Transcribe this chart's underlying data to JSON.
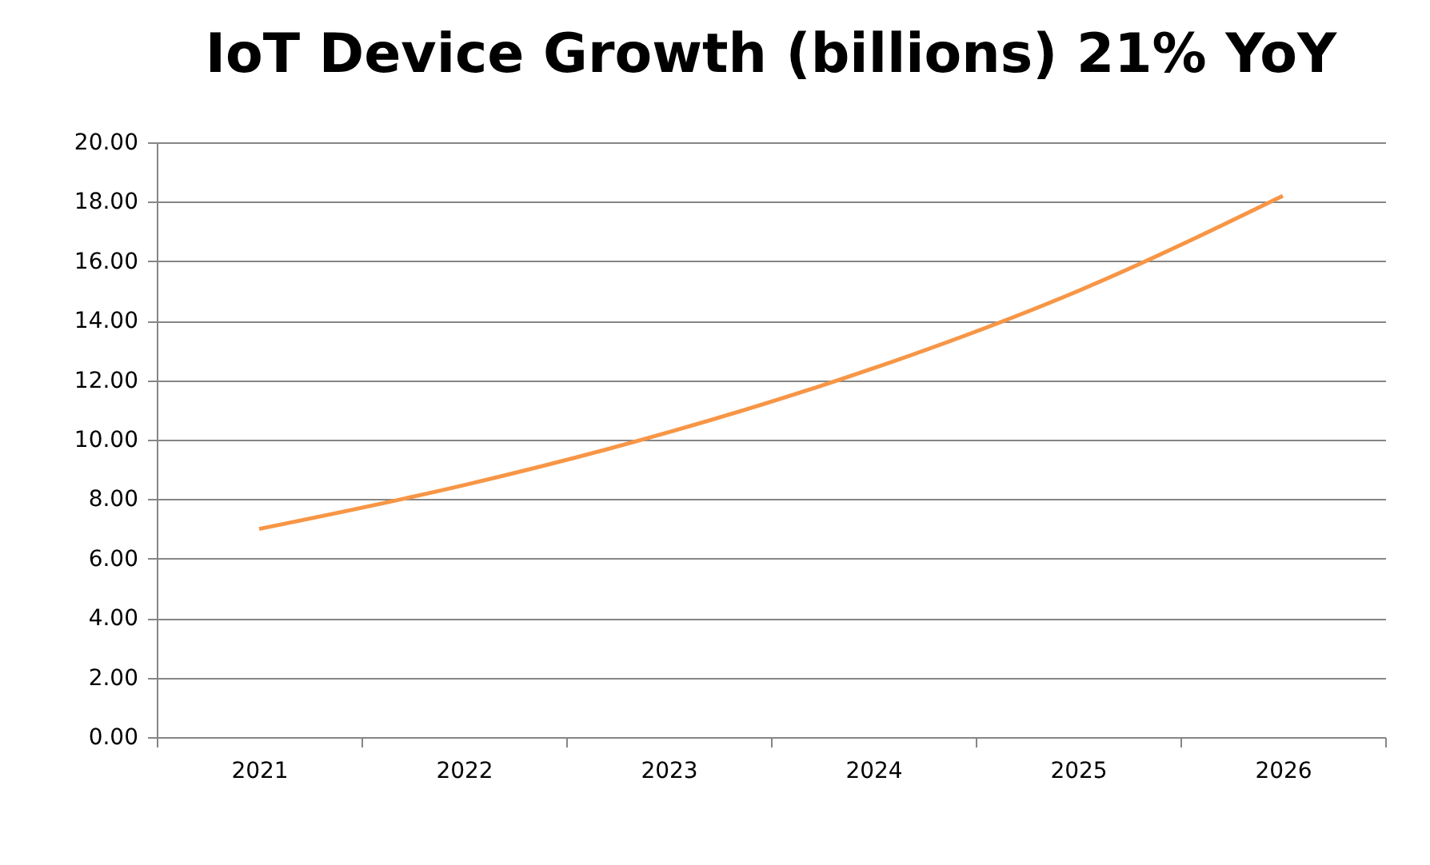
{
  "chart_data": {
    "type": "line",
    "title": "IoT Device Growth (billions) 21% YoY",
    "categories": [
      "2021",
      "2022",
      "2023",
      "2024",
      "2025",
      "2026"
    ],
    "series": [
      {
        "color": "#f79646",
        "values": [
          7.0,
          8.47,
          10.25,
          12.4,
          15.0,
          18.2
        ]
      }
    ],
    "ylim": [
      0,
      20
    ],
    "yticks": [
      {
        "value": 0,
        "label": "0.00"
      },
      {
        "value": 2,
        "label": "2.00"
      },
      {
        "value": 4,
        "label": "4.00"
      },
      {
        "value": 6,
        "label": "6.00"
      },
      {
        "value": 8,
        "label": "8.00"
      },
      {
        "value": 10,
        "label": "10.00"
      },
      {
        "value": 12,
        "label": "12.00"
      },
      {
        "value": 14,
        "label": "14.00"
      },
      {
        "value": 16,
        "label": "16.00"
      },
      {
        "value": 18,
        "label": "18.00"
      },
      {
        "value": 20,
        "label": "20.00"
      }
    ],
    "grid": "y",
    "legend": false,
    "marker": "none",
    "line_style": "solid"
  }
}
